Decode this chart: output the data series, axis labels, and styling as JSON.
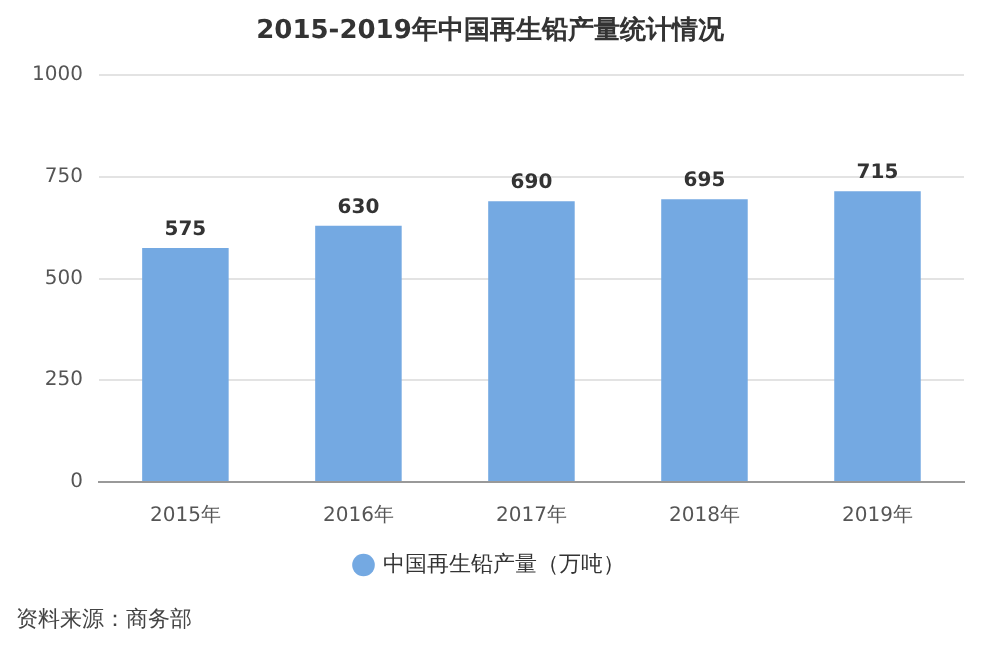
{
  "chart_data": {
    "type": "bar",
    "title": "2015-2019年中国再生铅产量统计情况",
    "categories": [
      "2015年",
      "2016年",
      "2017年",
      "2018年",
      "2019年"
    ],
    "series": [
      {
        "name": "中国再生铅产量（万吨）",
        "color": "#74a9e2",
        "values": [
          575,
          630,
          690,
          695,
          715
        ]
      }
    ],
    "ylim": [
      0,
      1000
    ],
    "yticks": [
      0,
      250,
      500,
      750,
      1000
    ],
    "grid": "y",
    "legend": "bottom",
    "data_labels": true,
    "annotations": [
      "资料来源：商务部"
    ]
  }
}
